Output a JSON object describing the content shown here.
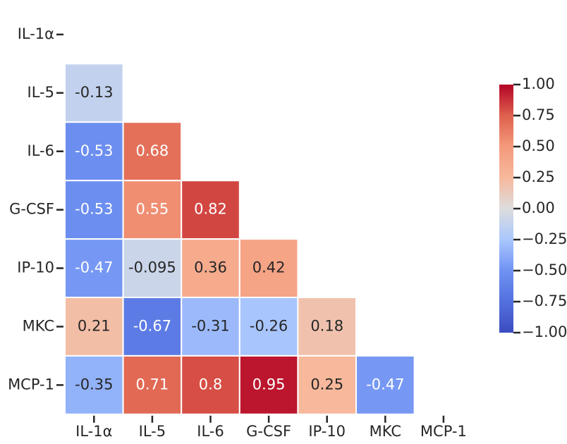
{
  "chart_data": {
    "type": "heatmap",
    "x": [
      "IL-1α",
      "IL-5",
      "IL-6",
      "G-CSF",
      "IP-10",
      "MKC",
      "MCP-1"
    ],
    "y": [
      "IL-1α",
      "IL-5",
      "IL-6",
      "G-CSF",
      "IP-10",
      "MKC",
      "MCP-1"
    ],
    "values": [
      [
        null,
        null,
        null,
        null,
        null,
        null,
        null
      ],
      [
        -0.13,
        null,
        null,
        null,
        null,
        null,
        null
      ],
      [
        -0.53,
        0.68,
        null,
        null,
        null,
        null,
        null
      ],
      [
        -0.53,
        0.55,
        0.82,
        null,
        null,
        null,
        null
      ],
      [
        -0.47,
        -0.095,
        0.36,
        0.42,
        null,
        null,
        null
      ],
      [
        0.21,
        -0.67,
        -0.31,
        -0.26,
        0.18,
        null,
        null
      ],
      [
        -0.35,
        0.71,
        0.8,
        0.95,
        0.25,
        -0.47,
        null
      ]
    ],
    "colormap": "coolwarm",
    "vlim": [
      -1,
      1
    ],
    "colorbar_ticks": [
      {
        "value": 1,
        "label": "1.00"
      },
      {
        "value": 0.75,
        "label": "0.75"
      },
      {
        "value": 0.5,
        "label": "0.50"
      },
      {
        "value": 0.25,
        "label": "0.25"
      },
      {
        "value": 0,
        "label": "0.00"
      },
      {
        "value": -0.25,
        "label": "−0.25"
      },
      {
        "value": -0.5,
        "label": "−0.50"
      },
      {
        "value": -0.75,
        "label": "−0.75"
      },
      {
        "value": -1,
        "label": "−1.00"
      }
    ]
  }
}
